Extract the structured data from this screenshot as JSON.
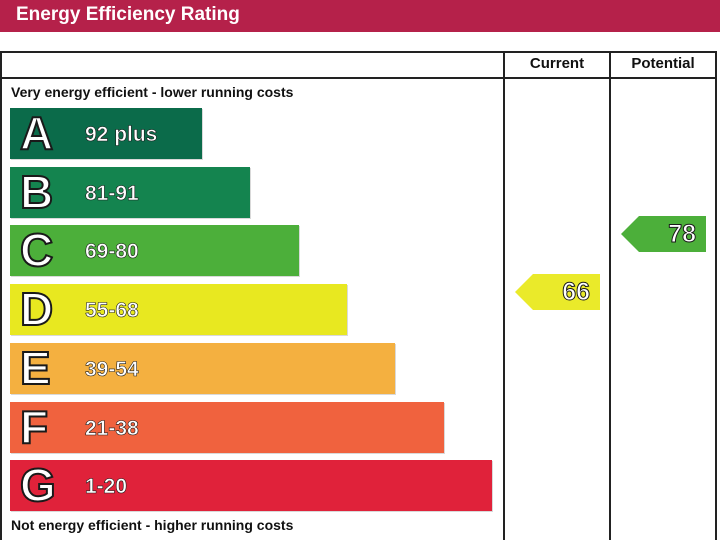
{
  "header": {
    "title": "Energy Efficiency Rating"
  },
  "columns": {
    "current": "Current",
    "potential": "Potential"
  },
  "captions": {
    "top": "Very energy efficient - lower running costs",
    "bottom": "Not energy efficient - higher running costs"
  },
  "chart_data": {
    "type": "bar",
    "title": "Energy Efficiency Rating",
    "categories": [
      "A",
      "B",
      "C",
      "D",
      "E",
      "F",
      "G"
    ],
    "ranges": [
      "92 plus",
      "81-91",
      "69-80",
      "55-68",
      "39-54",
      "21-38",
      "1-20"
    ],
    "colors": [
      "#0b6b4a",
      "#14844f",
      "#4caf3a",
      "#e8e820",
      "#f4b040",
      "#f0623e",
      "#e0223a"
    ],
    "current": {
      "label": "Current",
      "value": "66",
      "band": "D",
      "color": "#eaea2a"
    },
    "potential": {
      "label": "Potential",
      "value": "78",
      "band": "C",
      "color": "#4caf3a"
    }
  }
}
